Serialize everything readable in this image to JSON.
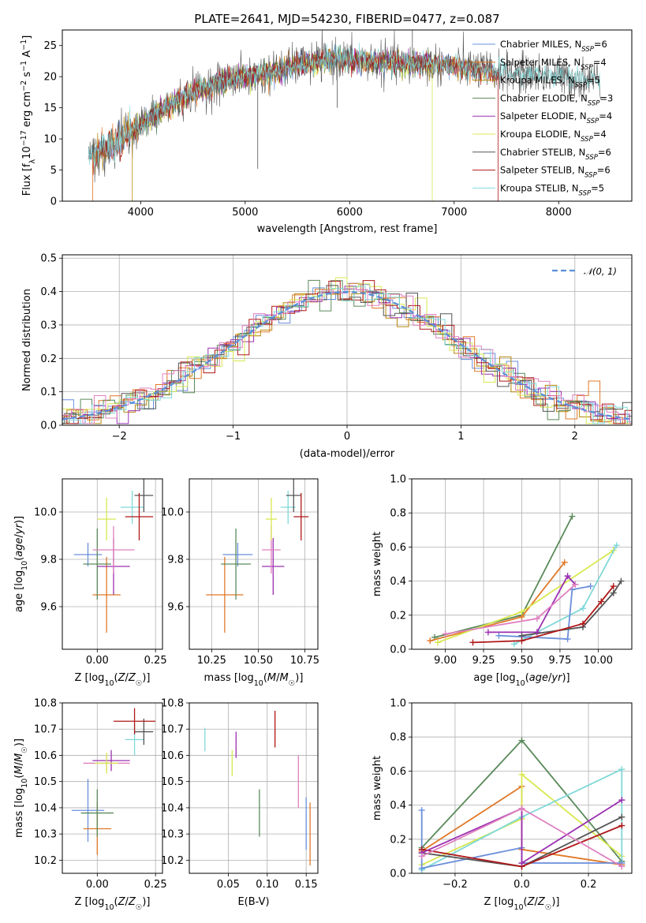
{
  "title": "PLATE=2641, MJD=54230, FIBERID=0477, z=0.087",
  "colors": {
    "Chabrier MILES": "#6a8fdc",
    "Salpeter MILES": "#e07828",
    "Kroupa MILES": "#b8860b",
    "Chabrier ELODIE": "#5a8a5a",
    "Salpeter ELODIE": "#9b30b0",
    "Kroupa ELODIE": "#d8e850",
    "Chabrier STELIB": "#555555",
    "Salpeter STELIB": "#b01818",
    "Kroupa STELIB": "#80d8d8",
    "pink": "#e080c0",
    "gauss": "#5b8fd8"
  },
  "chart_data": [
    {
      "type": "line",
      "id": "spectrum",
      "title": "PLATE=2641, MJD=54230, FIBERID=0477, z=0.087",
      "xlabel": "wavelength [Angstrom, rest frame]",
      "ylabel": "Flux [f_λ 10^-17 erg cm^-2 s^-1 A^-1]",
      "xlim": [
        3250,
        8700
      ],
      "ylim": [
        0,
        27.5
      ],
      "xticks": [
        4000,
        5000,
        6000,
        7000,
        8000
      ],
      "yticks": [
        0,
        5,
        10,
        15,
        20,
        25
      ],
      "grid": false,
      "legend_position": "top-right",
      "legend": [
        {
          "label": "Chabrier MILES",
          "n": "6"
        },
        {
          "label": "Salpeter MILES",
          "n": "4"
        },
        {
          "label": "Kroupa MILES",
          "n": "5"
        },
        {
          "label": "Chabrier ELODIE",
          "n": "3"
        },
        {
          "label": "Salpeter ELODIE",
          "n": "4"
        },
        {
          "label": "Kroupa ELODIE",
          "n": "4"
        },
        {
          "label": "Chabrier STELIB",
          "n": "6"
        },
        {
          "label": "Salpeter STELIB",
          "n": "6"
        },
        {
          "label": "Kroupa STELIB",
          "n": "5"
        }
      ],
      "continuum": {
        "x": [
          3500,
          3650,
          3800,
          3950,
          4100,
          4300,
          4500,
          4700,
          4900,
          5100,
          5300,
          5500,
          5700,
          5900,
          6100,
          6300,
          6500,
          6700,
          6900,
          7100,
          7300,
          7500,
          7800,
          8100,
          8400
        ],
        "y": [
          7.5,
          8.5,
          9.8,
          11.5,
          13.5,
          15.5,
          17.5,
          18.8,
          19.8,
          20.2,
          21.0,
          21.8,
          22.4,
          22.8,
          22.6,
          22.3,
          22.0,
          22.2,
          21.8,
          21.5,
          21.0,
          20.6,
          20.3,
          19.8,
          19.5
        ]
      }
    },
    {
      "type": "histogram",
      "id": "residuals",
      "xlabel": "(data-model)/error",
      "ylabel": "Normed distribution",
      "xlim": [
        -2.5,
        2.5
      ],
      "ylim": [
        0,
        0.51
      ],
      "xticks": [
        -2,
        -1,
        0,
        1,
        2
      ],
      "yticks": [
        0.0,
        0.1,
        0.2,
        0.3,
        0.4,
        0.5
      ],
      "grid": true,
      "legend": [
        {
          "label": "𝒩(0, 1)",
          "style": "dashed"
        }
      ],
      "legend_position": "top-right",
      "bin_width": 0.1
    },
    {
      "type": "errorbar",
      "id": "age-vs-Z",
      "xlabel": "Z [log10(Z/Z☉)]",
      "ylabel": "age  [log10(age/yr)]",
      "xlim": [
        -0.15,
        0.28
      ],
      "ylim": [
        9.42,
        10.14
      ],
      "xticks": [
        0.0,
        0.25
      ],
      "yticks": [
        9.6,
        9.8,
        10.0
      ],
      "points": [
        {
          "model": "Chabrier MILES",
          "x": -0.04,
          "y": 9.82,
          "xerr": 0.06,
          "yerr": 0.05
        },
        {
          "model": "Salpeter MILES",
          "x": 0.04,
          "y": 9.65,
          "xerr": 0.06,
          "yerr": 0.16
        },
        {
          "model": "Chabrier ELODIE",
          "x": 0.0,
          "y": 9.78,
          "xerr": 0.06,
          "yerr": 0.15
        },
        {
          "model": "Salpeter ELODIE",
          "x": 0.07,
          "y": 9.77,
          "xerr": 0.07,
          "yerr": 0.12
        },
        {
          "model": "pink",
          "x": 0.07,
          "y": 9.84,
          "xerr": 0.09,
          "yerr": 0.1
        },
        {
          "model": "Kroupa ELODIE",
          "x": 0.04,
          "y": 9.97,
          "xerr": 0.04,
          "yerr": 0.09
        },
        {
          "model": "Kroupa STELIB",
          "x": 0.15,
          "y": 10.02,
          "xerr": 0.05,
          "yerr": 0.07
        },
        {
          "model": "Chabrier STELIB",
          "x": 0.2,
          "y": 10.07,
          "xerr": 0.04,
          "yerr": 0.07
        },
        {
          "model": "Salpeter STELIB",
          "x": 0.18,
          "y": 9.98,
          "xerr": 0.06,
          "yerr": 0.1
        }
      ]
    },
    {
      "type": "errorbar",
      "id": "age-vs-mass",
      "xlabel": "mass [log10(M/M☉)]",
      "ylabel": "",
      "xlim": [
        10.13,
        10.82
      ],
      "ylim": [
        9.42,
        10.14
      ],
      "xticks": [
        10.25,
        10.5,
        10.75
      ],
      "yticks": [
        9.6,
        9.8,
        10.0
      ],
      "points": [
        {
          "model": "Chabrier MILES",
          "x": 10.39,
          "y": 9.82,
          "xerr": 0.08,
          "yerr": 0.05
        },
        {
          "model": "Salpeter MILES",
          "x": 10.32,
          "y": 9.65,
          "xerr": 0.1,
          "yerr": 0.16
        },
        {
          "model": "Chabrier ELODIE",
          "x": 10.38,
          "y": 9.78,
          "xerr": 0.08,
          "yerr": 0.15
        },
        {
          "model": "Salpeter ELODIE",
          "x": 10.58,
          "y": 9.77,
          "xerr": 0.06,
          "yerr": 0.12
        },
        {
          "model": "pink",
          "x": 10.57,
          "y": 9.84,
          "xerr": 0.05,
          "yerr": 0.1
        },
        {
          "model": "Kroupa ELODIE",
          "x": 10.57,
          "y": 9.97,
          "xerr": 0.03,
          "yerr": 0.09
        },
        {
          "model": "Kroupa STELIB",
          "x": 10.66,
          "y": 10.02,
          "xerr": 0.04,
          "yerr": 0.07
        },
        {
          "model": "Chabrier STELIB",
          "x": 10.69,
          "y": 10.07,
          "xerr": 0.04,
          "yerr": 0.07
        },
        {
          "model": "Salpeter STELIB",
          "x": 10.73,
          "y": 9.98,
          "xerr": 0.04,
          "yerr": 0.1
        }
      ]
    },
    {
      "type": "line",
      "id": "weight-vs-age",
      "xlabel": "age  [log10(age/yr)]",
      "ylabel": "mass weight",
      "xlim": [
        8.78,
        10.22
      ],
      "ylim": [
        0.0,
        1.0
      ],
      "xticks": [
        9.0,
        9.25,
        9.5,
        9.75,
        10.0
      ],
      "yticks": [
        0.0,
        0.2,
        0.4,
        0.6,
        0.8,
        1.0
      ],
      "grid": true,
      "series": [
        {
          "model": "Chabrier ELODIE",
          "x": [
            8.93,
            9.5,
            9.83
          ],
          "y": [
            0.07,
            0.2,
            0.78
          ]
        },
        {
          "model": "Salpeter MILES",
          "x": [
            8.9,
            9.5,
            9.78
          ],
          "y": [
            0.05,
            0.19,
            0.51
          ]
        },
        {
          "model": "Kroupa ELODIE",
          "x": [
            8.95,
            9.5,
            10.1
          ],
          "y": [
            0.04,
            0.22,
            0.58
          ]
        },
        {
          "model": "Kroupa STELIB",
          "x": [
            9.45,
            9.9,
            10.12
          ],
          "y": [
            0.03,
            0.24,
            0.61
          ]
        },
        {
          "model": "Chabrier MILES",
          "x": [
            9.35,
            9.8,
            9.83,
            9.95
          ],
          "y": [
            0.08,
            0.06,
            0.35,
            0.37
          ]
        },
        {
          "model": "Chabrier STELIB",
          "x": [
            9.5,
            9.9,
            10.1,
            10.15
          ],
          "y": [
            0.08,
            0.13,
            0.33,
            0.4
          ]
        },
        {
          "model": "Salpeter STELIB",
          "x": [
            9.18,
            9.5,
            9.9,
            10.02,
            10.1
          ],
          "y": [
            0.04,
            0.05,
            0.15,
            0.28,
            0.37
          ]
        },
        {
          "model": "Salpeter ELODIE",
          "x": [
            9.28,
            9.6,
            9.8,
            9.85
          ],
          "y": [
            0.1,
            0.1,
            0.43,
            0.38
          ]
        },
        {
          "model": "pink",
          "x": [
            9.0,
            9.6,
            9.85
          ],
          "y": [
            0.09,
            0.18,
            0.38
          ]
        }
      ]
    },
    {
      "type": "errorbar",
      "id": "mass-vs-Z",
      "xlabel": "Z [log10(Z/Z☉)]",
      "ylabel": "mass [log10(M/M☉)]",
      "xlim": [
        -0.15,
        0.28
      ],
      "ylim": [
        10.15,
        10.8
      ],
      "xticks": [
        0.0,
        0.25
      ],
      "yticks": [
        10.2,
        10.3,
        10.4,
        10.5,
        10.6,
        10.7,
        10.8
      ],
      "points": [
        {
          "model": "Chabrier MILES",
          "x": -0.04,
          "y": 10.39,
          "xerr": 0.07,
          "yerr": 0.12
        },
        {
          "model": "Salpeter MILES",
          "x": 0.0,
          "y": 10.32,
          "xerr": 0.06,
          "yerr": 0.1
        },
        {
          "model": "Chabrier ELODIE",
          "x": 0.0,
          "y": 10.38,
          "xerr": 0.07,
          "yerr": 0.09
        },
        {
          "model": "Salpeter ELODIE",
          "x": 0.06,
          "y": 10.58,
          "xerr": 0.08,
          "yerr": 0.04
        },
        {
          "model": "pink",
          "x": 0.04,
          "y": 10.57,
          "xerr": 0.1,
          "yerr": 0.03
        },
        {
          "model": "Kroupa ELODIE",
          "x": 0.04,
          "y": 10.57,
          "xerr": 0.05,
          "yerr": 0.04
        },
        {
          "model": "Kroupa STELIB",
          "x": 0.16,
          "y": 10.66,
          "xerr": 0.04,
          "yerr": 0.06
        },
        {
          "model": "Chabrier STELIB",
          "x": 0.2,
          "y": 10.69,
          "xerr": 0.04,
          "yerr": 0.05
        },
        {
          "model": "Salpeter STELIB",
          "x": 0.16,
          "y": 10.73,
          "xerr": 0.09,
          "yerr": 0.05
        }
      ]
    },
    {
      "type": "errorbar",
      "id": "mass-vs-ebv",
      "xlabel": "E(B-V)",
      "ylabel": "",
      "xlim": [
        0.0,
        0.165
      ],
      "ylim": [
        10.15,
        10.8
      ],
      "xticks": [
        0.05,
        0.1,
        0.15
      ],
      "yticks": [
        10.2,
        10.3,
        10.4,
        10.5,
        10.6,
        10.7,
        10.8
      ],
      "points": [
        {
          "model": "Kroupa STELIB",
          "x": 0.02,
          "y": 10.66,
          "xerr": 0,
          "yerr": 0.045
        },
        {
          "model": "Kroupa ELODIE",
          "x": 0.055,
          "y": 10.57,
          "xerr": 0,
          "yerr": 0.05
        },
        {
          "model": "Salpeter ELODIE",
          "x": 0.06,
          "y": 10.64,
          "xerr": 0,
          "yerr": 0.05
        },
        {
          "model": "Chabrier ELODIE",
          "x": 0.09,
          "y": 10.38,
          "xerr": 0,
          "yerr": 0.09
        },
        {
          "model": "Salpeter STELIB",
          "x": 0.11,
          "y": 10.7,
          "xerr": 0,
          "yerr": 0.07
        },
        {
          "model": "pink",
          "x": 0.14,
          "y": 10.5,
          "xerr": 0,
          "yerr": 0.1
        },
        {
          "model": "Chabrier MILES",
          "x": 0.15,
          "y": 10.34,
          "xerr": 0,
          "yerr": 0.1
        },
        {
          "model": "Salpeter MILES",
          "x": 0.155,
          "y": 10.3,
          "xerr": 0,
          "yerr": 0.12
        }
      ]
    },
    {
      "type": "line",
      "id": "weight-vs-Z",
      "xlabel": "Z [log10(Z/Z☉)]",
      "ylabel": "mass weight",
      "xlim": [
        -0.33,
        0.33
      ],
      "ylim": [
        0.0,
        1.0
      ],
      "xticks": [
        -0.2,
        0.0,
        0.2
      ],
      "yticks": [
        0.0,
        0.2,
        0.4,
        0.6,
        0.8,
        1.0
      ],
      "grid": true,
      "series": [
        {
          "model": "Chabrier ELODIE",
          "x": [
            -0.3,
            0.0,
            0.3
          ],
          "y": [
            0.15,
            0.78,
            0.07
          ]
        },
        {
          "model": "Salpeter MILES",
          "x": [
            -0.3,
            0.0,
            0.0,
            0.3
          ],
          "y": [
            0.13,
            0.51,
            0.14,
            0.05
          ]
        },
        {
          "model": "Kroupa ELODIE",
          "x": [
            -0.3,
            0.0,
            0.0,
            0.3
          ],
          "y": [
            0.05,
            0.32,
            0.58,
            0.1
          ]
        },
        {
          "model": "Kroupa STELIB",
          "x": [
            -0.3,
            0.0,
            0.3,
            0.3
          ],
          "y": [
            0.02,
            0.33,
            0.61,
            0.04
          ]
        },
        {
          "model": "Chabrier MILES",
          "x": [
            -0.3,
            -0.3,
            0.0,
            0.0,
            0.3
          ],
          "y": [
            0.37,
            0.03,
            0.15,
            0.06,
            0.06
          ]
        },
        {
          "model": "Chabrier STELIB",
          "x": [
            -0.3,
            0.0,
            0.3
          ],
          "y": [
            0.12,
            0.04,
            0.33
          ]
        },
        {
          "model": "Salpeter STELIB",
          "x": [
            -0.3,
            0.0,
            0.3
          ],
          "y": [
            0.14,
            0.04,
            0.28
          ]
        },
        {
          "model": "Salpeter ELODIE",
          "x": [
            -0.3,
            0.0,
            0.0,
            0.3
          ],
          "y": [
            0.12,
            0.38,
            0.06,
            0.43
          ]
        },
        {
          "model": "pink",
          "x": [
            -0.3,
            0.0,
            0.3
          ],
          "y": [
            0.1,
            0.38,
            0.04
          ]
        }
      ]
    }
  ]
}
